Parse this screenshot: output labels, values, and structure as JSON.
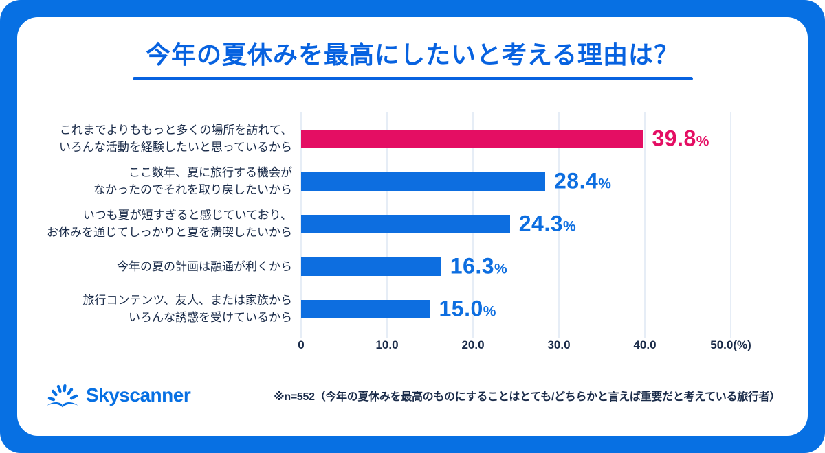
{
  "title": "今年の夏休みを最高にしたいと考える理由は？",
  "chart_data": {
    "type": "bar",
    "orientation": "horizontal",
    "title": "今年の夏休みを最高にしたいと考える理由は？",
    "categories": [
      "これまでよりももっと多くの場所を訪れて、いろんな活動を経験したいと思っているから",
      "ここ数年、夏に旅行する機会がなかったのでそれを取り戻したいから",
      "いつも夏が短すぎると感じていており、お休みを通じてしっかりと夏を満喫したいから",
      "今年の夏の計画は融通が利くから",
      "旅行コンテンツ、友人、または家族からいろんな誘惑を受けているから"
    ],
    "values": [
      39.8,
      28.4,
      24.3,
      16.3,
      15.0
    ],
    "unit": "%",
    "xlim": [
      0,
      50
    ],
    "x_ticks": [
      "0",
      "10.0",
      "20.0",
      "30.0",
      "40.0",
      "50.0(%)"
    ],
    "bar_colors": [
      "#E40E63",
      "#0D6EE0",
      "#0D6EE0",
      "#0D6EE0",
      "#0D6EE0"
    ],
    "grid": true,
    "legend": false
  },
  "rows": [
    {
      "label_line1": "これまでよりももっと多くの場所を訪れて、",
      "label_line2": "いろんな活動を経験したいと思っているから",
      "value": "39.8",
      "unit": "%"
    },
    {
      "label_line1": "ここ数年、夏に旅行する機会が",
      "label_line2": "なかったのでそれを取り戻したいから",
      "value": "28.4",
      "unit": "%"
    },
    {
      "label_line1": "いつも夏が短すぎると感じていており、",
      "label_line2": "お休みを通じてしっかりと夏を満喫したいから",
      "value": "24.3",
      "unit": "%"
    },
    {
      "label_line1": "今年の夏の計画は融通が利くから",
      "label_line2": "",
      "value": "16.3",
      "unit": "%"
    },
    {
      "label_line1": "旅行コンテンツ、友人、または家族から",
      "label_line2": "いろんな誘惑を受けているから",
      "value": "15.0",
      "unit": "%"
    }
  ],
  "footer": {
    "logo_text": "Skyscanner",
    "note": "※n=552（今年の夏休みを最高のものにすることはとても/どちらかと言えば重要だと考えている旅行者）"
  },
  "colors": {
    "frame_blue": "#0770E3",
    "bar_blue": "#0D6EE0",
    "accent_pink": "#E40E63",
    "title_blue": "#0762E0",
    "text_dark": "#1A2B49",
    "gridline": "#E6EDF6"
  }
}
